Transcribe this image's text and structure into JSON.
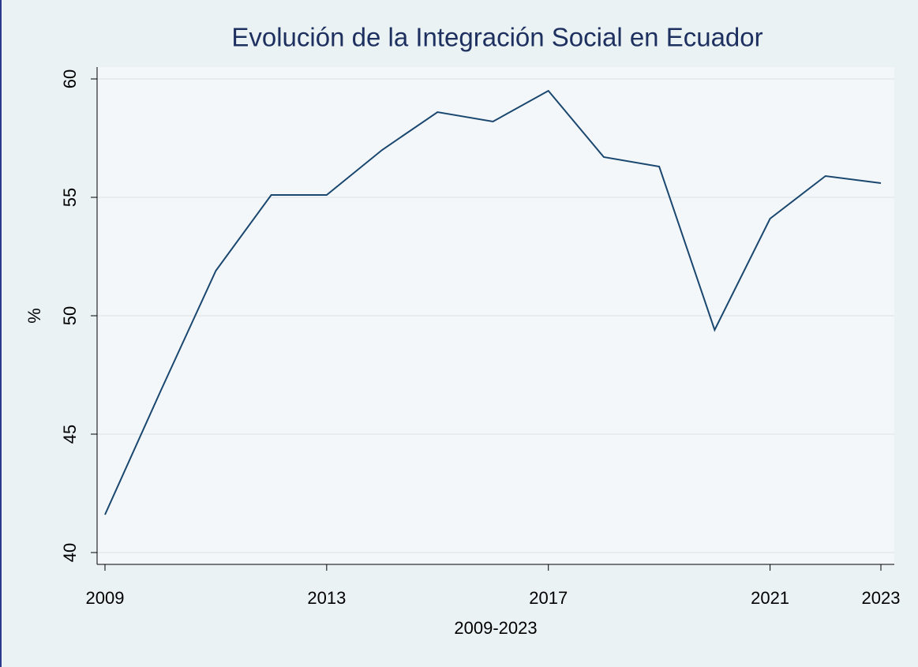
{
  "chart_data": {
    "type": "line",
    "title": "Evolución de la Integración Social en Ecuador",
    "x_label": "2009-2023",
    "y_label": "%",
    "x": [
      2009,
      2010,
      2011,
      2012,
      2013,
      2014,
      2015,
      2016,
      2017,
      2018,
      2019,
      2020,
      2021,
      2022,
      2023
    ],
    "series": [
      {
        "name": "Integración Social",
        "color": "#1a476f",
        "values": [
          41.6,
          46.8,
          51.9,
          55.1,
          55.1,
          57.0,
          58.6,
          58.2,
          59.5,
          56.7,
          56.3,
          49.4,
          54.1,
          55.9,
          55.6
        ]
      }
    ],
    "xlim": [
      2009,
      2023
    ],
    "xticks": [
      2009,
      2013,
      2017,
      2021,
      2023
    ],
    "ylim": [
      40,
      60
    ],
    "yticks": [
      40,
      45,
      50,
      55,
      60
    ],
    "grid": true
  }
}
